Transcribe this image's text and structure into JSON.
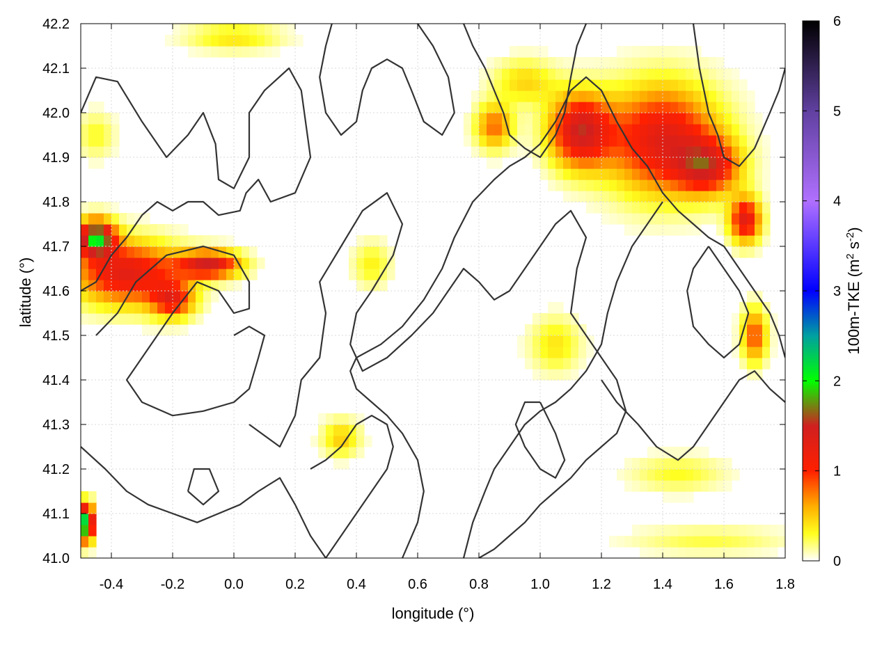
{
  "chart_data": {
    "type": "heatmap",
    "title": "",
    "xlabel": "longitude (°)",
    "ylabel": "latitude (°)",
    "xlim": [
      -0.5,
      1.8
    ],
    "ylim": [
      41.0,
      42.2
    ],
    "xticks": [
      "-0.4",
      "-0.2",
      "0.0",
      "0.2",
      "0.4",
      "0.6",
      "0.8",
      "1.0",
      "1.2",
      "1.4",
      "1.6",
      "1.8"
    ],
    "yticks": [
      "41.0",
      "41.1",
      "41.2",
      "41.3",
      "41.4",
      "41.5",
      "41.6",
      "41.7",
      "41.8",
      "41.9",
      "42.0",
      "42.1",
      "42.2"
    ],
    "grid": true,
    "colorbar": {
      "label_main": "100m-TKE (m",
      "label_sup1": "2",
      "label_mid": " s",
      "label_sup2": "-2",
      "label_end": ")",
      "range": [
        0,
        6
      ],
      "ticks": [
        "0",
        "1",
        "2",
        "3",
        "4",
        "5",
        "6"
      ],
      "stops": [
        {
          "v": 0.0,
          "color": "#ffffff"
        },
        {
          "v": 0.3,
          "color": "#ffff20"
        },
        {
          "v": 0.6,
          "color": "#ffb000"
        },
        {
          "v": 1.0,
          "color": "#ff2000"
        },
        {
          "v": 1.5,
          "color": "#d02020"
        },
        {
          "v": 2.0,
          "color": "#00ff00"
        },
        {
          "v": 2.5,
          "color": "#00a0a0"
        },
        {
          "v": 3.0,
          "color": "#0000ff"
        },
        {
          "v": 4.0,
          "color": "#b070ff"
        },
        {
          "v": 5.0,
          "color": "#6040a0"
        },
        {
          "v": 6.0,
          "color": "#000000"
        }
      ]
    },
    "tke_regions": [
      {
        "lon": -0.35,
        "lat": 41.64,
        "rlon": 0.17,
        "rlat": 0.07,
        "peak": 1.3
      },
      {
        "lon": -0.45,
        "lat": 41.72,
        "rlon": 0.06,
        "rlat": 0.04,
        "peak": 1.9
      },
      {
        "lon": -0.08,
        "lat": 41.66,
        "rlon": 0.1,
        "rlat": 0.03,
        "peak": 1.4
      },
      {
        "lon": -0.2,
        "lat": 41.58,
        "rlon": 0.07,
        "rlat": 0.04,
        "peak": 1.0
      },
      {
        "lon": 1.13,
        "lat": 41.96,
        "rlon": 0.1,
        "rlat": 0.08,
        "peak": 1.4
      },
      {
        "lon": 1.4,
        "lat": 41.94,
        "rlon": 0.18,
        "rlat": 0.12,
        "peak": 1.3
      },
      {
        "lon": 1.55,
        "lat": 41.88,
        "rlon": 0.1,
        "rlat": 0.06,
        "peak": 1.1
      },
      {
        "lon": 1.67,
        "lat": 41.76,
        "rlon": 0.05,
        "rlat": 0.05,
        "peak": 1.3
      },
      {
        "lon": 1.7,
        "lat": 41.5,
        "rlon": 0.04,
        "rlat": 0.06,
        "peak": 0.9
      },
      {
        "lon": 0.85,
        "lat": 41.97,
        "rlon": 0.06,
        "rlat": 0.05,
        "peak": 0.8
      },
      {
        "lon": 0.95,
        "lat": 42.07,
        "rlon": 0.1,
        "rlat": 0.05,
        "peak": 0.45
      },
      {
        "lon": 0.45,
        "lat": 41.66,
        "rlon": 0.06,
        "rlat": 0.05,
        "peak": 0.35
      },
      {
        "lon": 1.05,
        "lat": 41.48,
        "rlon": 0.08,
        "rlat": 0.06,
        "peak": 0.4
      },
      {
        "lon": 0.35,
        "lat": 41.27,
        "rlon": 0.06,
        "rlat": 0.04,
        "peak": 0.5
      },
      {
        "lon": 1.45,
        "lat": 41.19,
        "rlon": 0.15,
        "rlat": 0.04,
        "peak": 0.3
      },
      {
        "lon": 1.55,
        "lat": 41.04,
        "rlon": 0.25,
        "rlat": 0.03,
        "peak": 0.25
      },
      {
        "lon": -0.48,
        "lat": 41.08,
        "rlon": 0.02,
        "rlat": 0.04,
        "peak": 2.6
      },
      {
        "lon": -0.45,
        "lat": 41.95,
        "rlon": 0.06,
        "rlat": 0.05,
        "peak": 0.3
      },
      {
        "lon": 0.0,
        "lat": 42.17,
        "rlon": 0.15,
        "rlat": 0.03,
        "peak": 0.4
      }
    ],
    "contours": [
      [
        [
          -0.5,
          42.0
        ],
        [
          -0.45,
          42.08
        ],
        [
          -0.38,
          42.07
        ],
        [
          -0.3,
          41.98
        ],
        [
          -0.22,
          41.9
        ],
        [
          -0.15,
          41.95
        ],
        [
          -0.1,
          42.0
        ],
        [
          -0.06,
          41.93
        ],
        [
          -0.05,
          41.85
        ],
        [
          0.0,
          41.83
        ],
        [
          0.05,
          41.9
        ],
        [
          0.05,
          42.0
        ],
        [
          0.1,
          42.05
        ],
        [
          0.18,
          42.1
        ],
        [
          0.22,
          42.05
        ],
        [
          0.25,
          41.9
        ],
        [
          0.2,
          41.82
        ],
        [
          0.12,
          41.8
        ],
        [
          0.08,
          41.85
        ],
        [
          0.04,
          41.82
        ],
        [
          0.02,
          41.78
        ],
        [
          -0.05,
          41.77
        ],
        [
          -0.1,
          41.8
        ],
        [
          -0.15,
          41.8
        ],
        [
          -0.2,
          41.78
        ],
        [
          -0.25,
          41.8
        ],
        [
          -0.3,
          41.77
        ],
        [
          -0.35,
          41.72
        ],
        [
          -0.4,
          41.68
        ],
        [
          -0.45,
          41.62
        ],
        [
          -0.5,
          41.6
        ]
      ],
      [
        [
          -0.45,
          41.5
        ],
        [
          -0.38,
          41.55
        ],
        [
          -0.32,
          41.62
        ],
        [
          -0.22,
          41.68
        ],
        [
          -0.1,
          41.7
        ],
        [
          0.0,
          41.68
        ],
        [
          0.05,
          41.62
        ],
        [
          0.05,
          41.56
        ],
        [
          0.0,
          41.55
        ],
        [
          -0.05,
          41.6
        ],
        [
          -0.12,
          41.62
        ],
        [
          -0.2,
          41.55
        ],
        [
          -0.25,
          41.5
        ],
        [
          -0.3,
          41.45
        ],
        [
          -0.35,
          41.4
        ],
        [
          -0.3,
          41.35
        ],
        [
          -0.2,
          41.32
        ],
        [
          -0.1,
          41.33
        ],
        [
          0.0,
          41.35
        ],
        [
          0.05,
          41.38
        ],
        [
          0.08,
          41.45
        ],
        [
          0.1,
          41.5
        ],
        [
          0.05,
          41.52
        ],
        [
          0.0,
          41.5
        ]
      ],
      [
        [
          0.05,
          41.3
        ],
        [
          0.15,
          41.25
        ],
        [
          0.2,
          41.32
        ],
        [
          0.22,
          41.4
        ],
        [
          0.28,
          41.45
        ],
        [
          0.3,
          41.55
        ],
        [
          0.28,
          41.62
        ],
        [
          0.35,
          41.7
        ],
        [
          0.42,
          41.78
        ],
        [
          0.5,
          41.82
        ],
        [
          0.55,
          41.75
        ],
        [
          0.52,
          41.68
        ],
        [
          0.45,
          41.6
        ],
        [
          0.4,
          41.55
        ],
        [
          0.38,
          41.48
        ],
        [
          0.42,
          41.42
        ],
        [
          0.5,
          41.45
        ],
        [
          0.58,
          41.5
        ],
        [
          0.65,
          41.55
        ],
        [
          0.7,
          41.6
        ],
        [
          0.75,
          41.65
        ],
        [
          0.8,
          41.62
        ],
        [
          0.85,
          41.58
        ],
        [
          0.9,
          41.6
        ],
        [
          0.95,
          41.65
        ],
        [
          1.0,
          41.7
        ],
        [
          1.05,
          41.75
        ],
        [
          1.1,
          41.78
        ],
        [
          1.15,
          41.72
        ],
        [
          1.12,
          41.65
        ],
        [
          1.1,
          41.55
        ],
        [
          1.15,
          41.5
        ],
        [
          1.2,
          41.45
        ],
        [
          1.25,
          41.4
        ],
        [
          1.28,
          41.33
        ],
        [
          1.25,
          41.28
        ],
        [
          1.2,
          41.25
        ],
        [
          1.15,
          41.22
        ],
        [
          1.1,
          41.18
        ],
        [
          1.05,
          41.15
        ],
        [
          1.0,
          41.12
        ],
        [
          0.95,
          41.08
        ],
        [
          0.9,
          41.05
        ],
        [
          0.85,
          41.02
        ],
        [
          0.8,
          41.0
        ]
      ],
      [
        [
          0.55,
          41.0
        ],
        [
          0.6,
          41.08
        ],
        [
          0.62,
          41.15
        ],
        [
          0.6,
          41.22
        ],
        [
          0.55,
          41.28
        ],
        [
          0.5,
          41.32
        ],
        [
          0.45,
          41.35
        ],
        [
          0.4,
          41.38
        ],
        [
          0.38,
          41.42
        ],
        [
          0.4,
          41.45
        ],
        [
          0.48,
          41.48
        ],
        [
          0.55,
          41.52
        ],
        [
          0.62,
          41.58
        ],
        [
          0.68,
          41.65
        ],
        [
          0.72,
          41.72
        ],
        [
          0.78,
          41.8
        ],
        [
          0.85,
          41.85
        ],
        [
          0.9,
          41.88
        ],
        [
          0.95,
          41.9
        ],
        [
          1.0,
          41.93
        ],
        [
          1.05,
          41.98
        ],
        [
          1.1,
          42.05
        ],
        [
          1.15,
          42.08
        ],
        [
          1.2,
          42.05
        ],
        [
          1.25,
          41.98
        ],
        [
          1.3,
          41.92
        ],
        [
          1.35,
          41.88
        ],
        [
          1.4,
          41.82
        ],
        [
          1.45,
          41.78
        ],
        [
          1.5,
          41.75
        ],
        [
          1.55,
          41.72
        ],
        [
          1.6,
          41.7
        ],
        [
          1.65,
          41.65
        ],
        [
          1.7,
          41.6
        ],
        [
          1.75,
          41.55
        ],
        [
          1.78,
          41.5
        ],
        [
          1.8,
          41.45
        ]
      ],
      [
        [
          1.2,
          41.4
        ],
        [
          1.25,
          41.35
        ],
        [
          1.32,
          41.3
        ],
        [
          1.38,
          41.25
        ],
        [
          1.45,
          41.22
        ],
        [
          1.5,
          41.25
        ],
        [
          1.55,
          41.3
        ],
        [
          1.6,
          41.35
        ],
        [
          1.65,
          41.4
        ],
        [
          1.7,
          41.42
        ],
        [
          1.75,
          41.38
        ],
        [
          1.8,
          41.35
        ]
      ],
      [
        [
          0.75,
          41.0
        ],
        [
          0.78,
          41.08
        ],
        [
          0.82,
          41.15
        ],
        [
          0.85,
          41.2
        ],
        [
          0.9,
          41.25
        ],
        [
          0.95,
          41.3
        ],
        [
          1.0,
          41.33
        ],
        [
          1.05,
          41.35
        ],
        [
          1.1,
          41.38
        ],
        [
          1.15,
          41.42
        ],
        [
          1.2,
          41.48
        ],
        [
          1.22,
          41.55
        ],
        [
          1.25,
          41.62
        ],
        [
          1.3,
          41.7
        ],
        [
          1.35,
          41.75
        ],
        [
          1.4,
          41.8
        ]
      ],
      [
        [
          -0.5,
          41.25
        ],
        [
          -0.42,
          41.2
        ],
        [
          -0.35,
          41.15
        ],
        [
          -0.28,
          41.12
        ],
        [
          -0.2,
          41.1
        ],
        [
          -0.12,
          41.08
        ],
        [
          -0.05,
          41.1
        ],
        [
          0.02,
          41.12
        ],
        [
          0.08,
          41.15
        ],
        [
          0.15,
          41.18
        ],
        [
          0.2,
          41.12
        ],
        [
          0.25,
          41.05
        ],
        [
          0.3,
          41.0
        ]
      ],
      [
        [
          0.3,
          41.0
        ],
        [
          0.35,
          41.05
        ],
        [
          0.4,
          41.1
        ],
        [
          0.45,
          41.15
        ],
        [
          0.5,
          41.2
        ],
        [
          0.52,
          41.25
        ],
        [
          0.5,
          41.3
        ],
        [
          0.45,
          41.32
        ],
        [
          0.4,
          41.3
        ],
        [
          0.35,
          41.25
        ],
        [
          0.3,
          41.22
        ],
        [
          0.25,
          41.2
        ]
      ],
      [
        [
          0.6,
          42.2
        ],
        [
          0.65,
          42.15
        ],
        [
          0.7,
          42.08
        ],
        [
          0.72,
          42.0
        ],
        [
          0.68,
          41.95
        ],
        [
          0.62,
          41.98
        ],
        [
          0.58,
          42.05
        ],
        [
          0.55,
          42.1
        ],
        [
          0.5,
          42.12
        ],
        [
          0.45,
          42.1
        ],
        [
          0.42,
          42.05
        ],
        [
          0.4,
          41.98
        ],
        [
          0.35,
          41.95
        ],
        [
          0.3,
          42.0
        ],
        [
          0.28,
          42.08
        ],
        [
          0.3,
          42.15
        ],
        [
          0.32,
          42.2
        ]
      ],
      [
        [
          0.75,
          42.2
        ],
        [
          0.78,
          42.15
        ],
        [
          0.82,
          42.1
        ],
        [
          0.85,
          42.05
        ],
        [
          0.88,
          42.0
        ],
        [
          0.9,
          41.95
        ],
        [
          0.95,
          41.92
        ],
        [
          1.0,
          41.9
        ],
        [
          1.05,
          41.95
        ],
        [
          1.08,
          42.0
        ],
        [
          1.1,
          42.08
        ],
        [
          1.12,
          42.15
        ],
        [
          1.15,
          42.2
        ]
      ],
      [
        [
          1.5,
          42.2
        ],
        [
          1.52,
          42.1
        ],
        [
          1.55,
          42.0
        ],
        [
          1.58,
          41.95
        ],
        [
          1.6,
          41.9
        ],
        [
          1.65,
          41.88
        ],
        [
          1.7,
          41.92
        ],
        [
          1.75,
          42.0
        ],
        [
          1.78,
          42.05
        ],
        [
          1.8,
          42.1
        ]
      ],
      [
        [
          1.55,
          41.7
        ],
        [
          1.5,
          41.65
        ],
        [
          1.48,
          41.6
        ],
        [
          1.5,
          41.52
        ],
        [
          1.55,
          41.48
        ],
        [
          1.6,
          41.45
        ],
        [
          1.65,
          41.48
        ],
        [
          1.68,
          41.55
        ],
        [
          1.65,
          41.6
        ],
        [
          1.6,
          41.65
        ],
        [
          1.55,
          41.7
        ]
      ],
      [
        [
          1.0,
          41.35
        ],
        [
          1.05,
          41.28
        ],
        [
          1.08,
          41.22
        ],
        [
          1.05,
          41.18
        ],
        [
          1.0,
          41.2
        ],
        [
          0.95,
          41.25
        ],
        [
          0.92,
          41.3
        ],
        [
          0.95,
          41.35
        ],
        [
          1.0,
          41.35
        ]
      ],
      [
        [
          -0.15,
          41.15
        ],
        [
          -0.1,
          41.12
        ],
        [
          -0.05,
          41.15
        ],
        [
          -0.08,
          41.2
        ],
        [
          -0.13,
          41.2
        ],
        [
          -0.15,
          41.15
        ]
      ]
    ]
  }
}
